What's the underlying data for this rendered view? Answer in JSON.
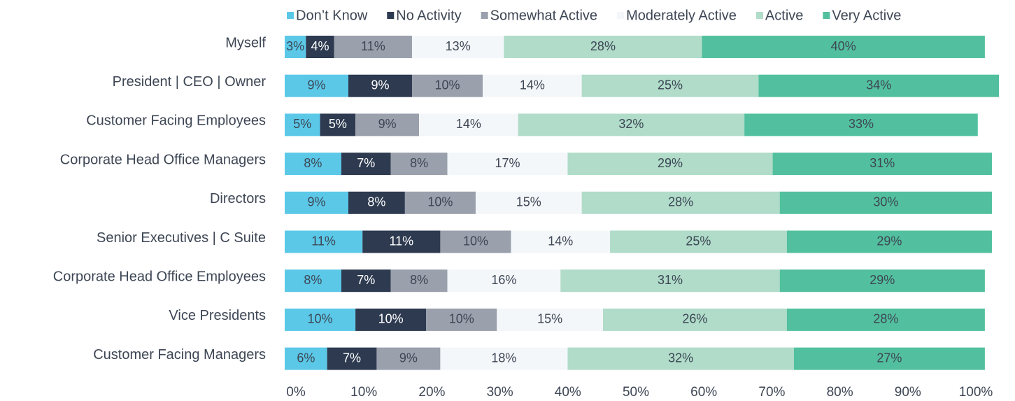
{
  "chart_data": {
    "type": "stacked-bar-horizontal",
    "categories": [
      "Myself",
      "President   | CEO  |  Owner",
      "Customer Facing Employees",
      "Corporate Head Office Managers",
      "Directors",
      "Senior Executives  |  C Suite",
      "Corporate Head Office Employees",
      "Vice Presidents",
      "Customer Facing Managers"
    ],
    "series": [
      {
        "name": "Don’t Know",
        "color": "#5bc8e8",
        "values": [
          3,
          9,
          5,
          8,
          9,
          11,
          8,
          10,
          6
        ]
      },
      {
        "name": "No Activity",
        "color": "#2d3a50",
        "values": [
          4,
          9,
          5,
          7,
          8,
          11,
          7,
          10,
          7
        ]
      },
      {
        "name": "Somewhat Active",
        "color": "#9aa0ac",
        "values": [
          11,
          10,
          9,
          8,
          10,
          10,
          8,
          10,
          9
        ]
      },
      {
        "name": "Moderately Active",
        "color": "#f4f7fa",
        "values": [
          13,
          14,
          14,
          17,
          15,
          14,
          16,
          15,
          18
        ]
      },
      {
        "name": "Active",
        "color": "#b0dcc9",
        "values": [
          28,
          25,
          32,
          29,
          28,
          25,
          31,
          26,
          32
        ]
      },
      {
        "name": "Very Active",
        "color": "#52c09e",
        "values": [
          40,
          34,
          33,
          31,
          30,
          29,
          29,
          28,
          27
        ]
      }
    ],
    "xlim": [
      0,
      100
    ],
    "xticks": [
      {
        "value": 0,
        "label": "0%"
      },
      {
        "value": 10,
        "label": "10%"
      },
      {
        "value": 20,
        "label": "20%"
      },
      {
        "value": 30,
        "label": "30%"
      },
      {
        "value": 40,
        "label": "40%"
      },
      {
        "value": 50,
        "label": "50%"
      },
      {
        "value": 60,
        "label": "60%"
      },
      {
        "value": 70,
        "label": "70%"
      },
      {
        "value": 80,
        "label": "80%"
      },
      {
        "value": 90,
        "label": "90%"
      },
      {
        "value": 100,
        "label": "100%"
      }
    ],
    "value_labels": [
      [
        "3%",
        "9%",
        "5%",
        "8%",
        "9%",
        "11%",
        "8%",
        "10%",
        "6%"
      ],
      [
        "4%",
        "9%",
        "5%",
        "7%",
        "8%",
        "11%",
        "7%",
        "10%",
        "7%"
      ],
      [
        "11%",
        "10%",
        "9%",
        "8%",
        "10%",
        "10%",
        "8%",
        "10%",
        "9%"
      ],
      [
        "13%",
        "14%",
        "14%",
        "17%",
        "15%",
        "14%",
        "16%",
        "15%",
        "18%"
      ],
      [
        "28%",
        "25%",
        "32%",
        "29%",
        "28%",
        "25%",
        "31%",
        "26%",
        "32%"
      ],
      [
        "40%",
        "34%",
        "33%",
        "31%",
        "30%",
        "29%",
        "29%",
        "28%",
        "27%"
      ]
    ],
    "legend": "top",
    "grid": false
  }
}
